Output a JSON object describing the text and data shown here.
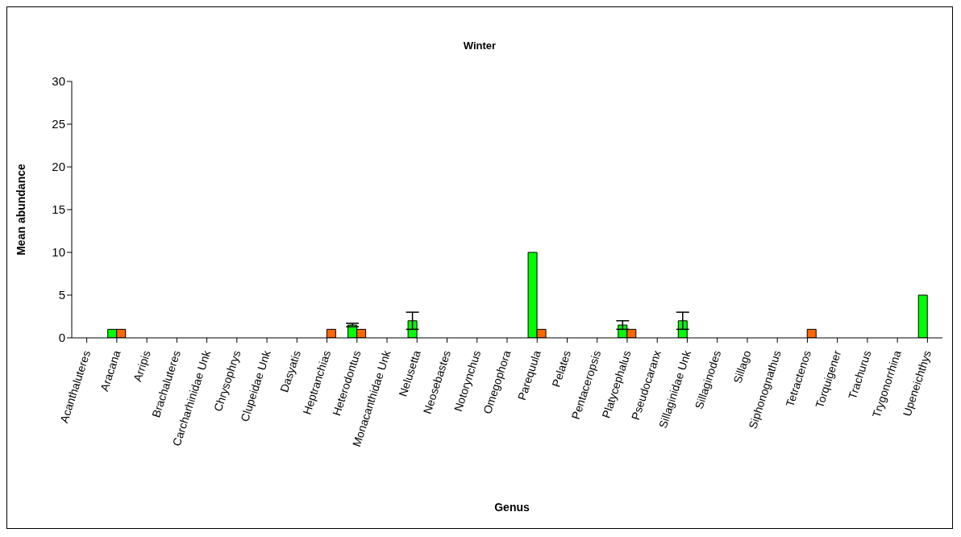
{
  "chart_data": {
    "type": "bar",
    "title": "Winter",
    "xlabel": "Genus",
    "ylabel": "Mean abundance",
    "categories": [
      "Acanthaluteres",
      "Aracana",
      "Arripis",
      "Brachaluteres",
      "Carcharhinidae Unk",
      "Chrysophrys",
      "Clupeidae Unk",
      "Dasyatis",
      "Heptranchias",
      "Heterodontus",
      "Monacanthidae Unk",
      "Nelusetta",
      "Neosebastes",
      "Notorynchus",
      "Omegophora",
      "Parequula",
      "Pelates",
      "Pentaceropsis",
      "Platycephalus",
      "Pseudocaranx",
      "Sillaginidae Unk",
      "Sillaginodes",
      "Sillago",
      "Siphonognathus",
      "Tetractenos",
      "Torquigener",
      "Trachurus",
      "Trygonorrhina",
      "Upeneichthys"
    ],
    "series": [
      {
        "color": "#00ff00",
        "values": [
          null,
          1,
          null,
          null,
          null,
          null,
          null,
          null,
          null,
          1.5,
          null,
          2,
          null,
          null,
          null,
          10,
          null,
          null,
          1.5,
          null,
          2,
          null,
          null,
          null,
          null,
          null,
          null,
          null,
          5
        ],
        "errors": [
          null,
          null,
          null,
          null,
          null,
          null,
          null,
          null,
          null,
          0.2,
          null,
          1,
          null,
          null,
          null,
          null,
          null,
          null,
          0.5,
          null,
          1,
          null,
          null,
          null,
          null,
          null,
          null,
          null,
          null
        ]
      },
      {
        "color": "#ff6600",
        "values": [
          null,
          1,
          null,
          null,
          null,
          null,
          null,
          null,
          1,
          1,
          null,
          null,
          null,
          null,
          null,
          1,
          null,
          null,
          1,
          null,
          null,
          null,
          null,
          null,
          1,
          null,
          null,
          null,
          null
        ]
      }
    ],
    "ylim": [
      0,
      30
    ],
    "yticks": [
      0,
      5,
      10,
      15,
      20,
      25,
      30
    ],
    "grid": false,
    "legend": false
  }
}
